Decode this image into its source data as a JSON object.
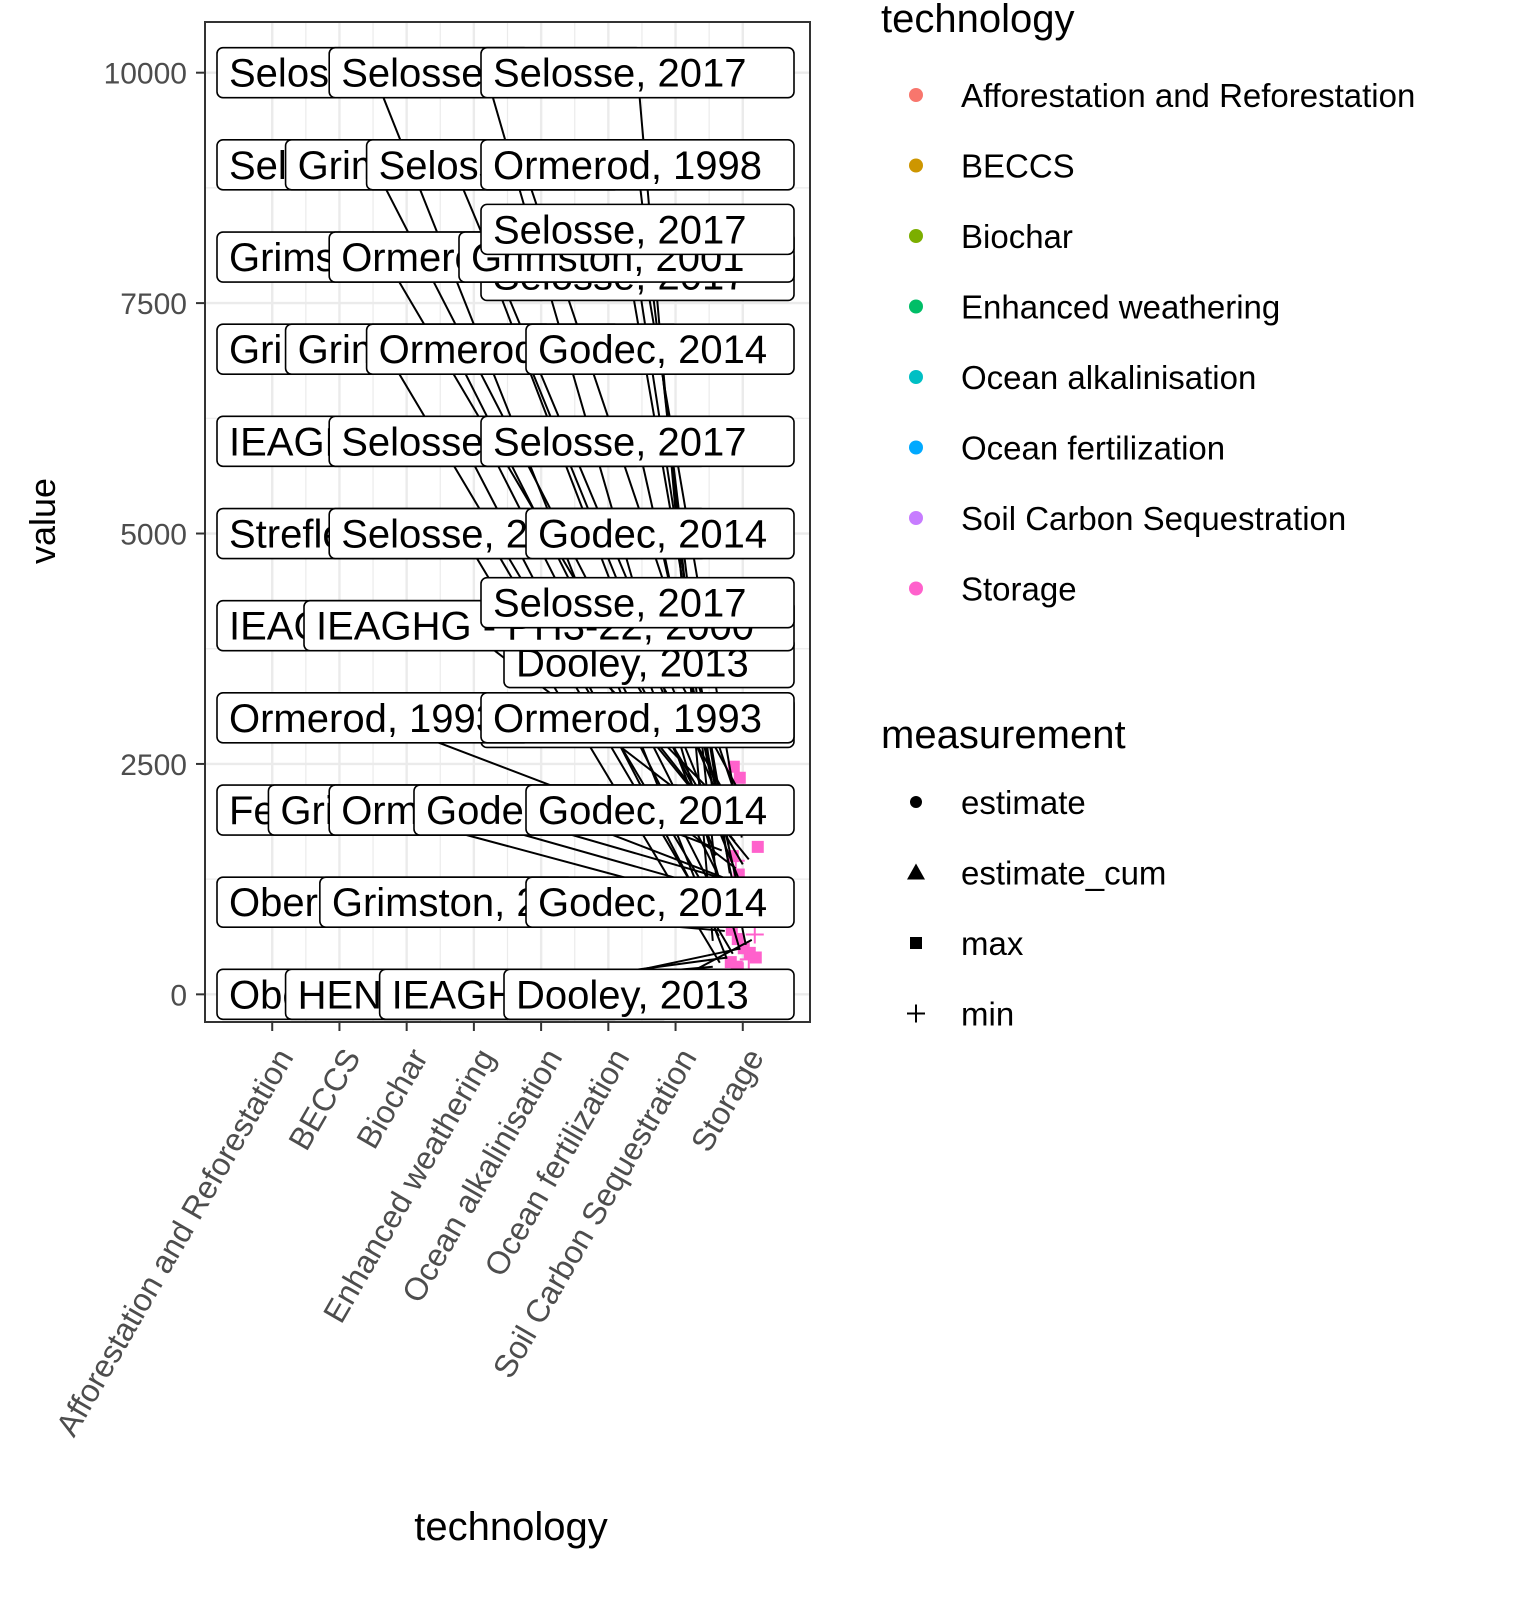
{
  "chart_data": {
    "type": "scatter",
    "xlabel": "technology",
    "ylabel": "value",
    "categories": [
      "Afforestation and Reforestation",
      "BECCS",
      "Biochar",
      "Enhanced weathering",
      "Ocean alkalinisation",
      "Ocean fertilization",
      "Soil Carbon Sequestration",
      "Storage"
    ],
    "ylim": [
      -300,
      10550
    ],
    "yticks": [
      0,
      2500,
      5000,
      7500,
      10000
    ],
    "ytick_labels": [
      "0",
      "2500",
      "5000",
      "7500",
      "10000"
    ],
    "grid": true,
    "legend_position": "right",
    "legend_technology": {
      "title": "technology",
      "items": [
        {
          "label": "Afforestation and Reforestation",
          "color": "#F8766D"
        },
        {
          "label": "BECCS",
          "color": "#CD9600"
        },
        {
          "label": "Biochar",
          "color": "#7CAE00"
        },
        {
          "label": "Enhanced weathering",
          "color": "#00BE67"
        },
        {
          "label": "Ocean alkalinisation",
          "color": "#00BFC4"
        },
        {
          "label": "Ocean fertilization",
          "color": "#00A9FF"
        },
        {
          "label": "Soil Carbon Sequestration",
          "color": "#C77CFF"
        },
        {
          "label": "Storage",
          "color": "#FF61CC"
        }
      ]
    },
    "legend_measurement": {
      "title": "measurement",
      "items": [
        {
          "label": "estimate",
          "shape": "circle"
        },
        {
          "label": "estimate_cum",
          "shape": "triangle"
        },
        {
          "label": "max",
          "shape": "square"
        },
        {
          "label": "min",
          "shape": "plus"
        }
      ]
    },
    "points": [
      {
        "x": "Afforestation and Reforestation",
        "y": 20,
        "color": "#F8766D",
        "shape": "plus"
      },
      {
        "x": "Storage",
        "y": 2470,
        "color": "#FF61CC",
        "shape": "square"
      },
      {
        "x": "Storage",
        "y": 2350,
        "color": "#FF61CC",
        "shape": "square"
      },
      {
        "x": "Storage",
        "y": 2000,
        "color": "#FF61CC",
        "shape": "square"
      },
      {
        "x": "Storage",
        "y": 1850,
        "color": "#FF61CC",
        "shape": "square"
      },
      {
        "x": "Storage",
        "y": 1600,
        "color": "#FF61CC",
        "shape": "square"
      },
      {
        "x": "Storage",
        "y": 1500,
        "color": "#FF61CC",
        "shape": "square"
      },
      {
        "x": "Storage",
        "y": 1300,
        "color": "#FF61CC",
        "shape": "square"
      },
      {
        "x": "Storage",
        "y": 1100,
        "color": "#FF61CC",
        "shape": "square"
      },
      {
        "x": "Storage",
        "y": 900,
        "color": "#FF61CC",
        "shape": "square"
      },
      {
        "x": "Storage",
        "y": 800,
        "color": "#FF61CC",
        "shape": "square"
      },
      {
        "x": "Storage",
        "y": 700,
        "color": "#FF61CC",
        "shape": "square"
      },
      {
        "x": "Storage",
        "y": 600,
        "color": "#FF61CC",
        "shape": "square"
      },
      {
        "x": "Storage",
        "y": 500,
        "color": "#FF61CC",
        "shape": "square"
      },
      {
        "x": "Storage",
        "y": 450,
        "color": "#FF61CC",
        "shape": "square"
      },
      {
        "x": "Storage",
        "y": 400,
        "color": "#FF61CC",
        "shape": "square"
      },
      {
        "x": "Storage",
        "y": 350,
        "color": "#FF61CC",
        "shape": "square"
      },
      {
        "x": "Storage",
        "y": 300,
        "color": "#FF61CC",
        "shape": "square"
      },
      {
        "x": "Storage",
        "y": 250,
        "color": "#FF61CC",
        "shape": "plus"
      },
      {
        "x": "Storage",
        "y": 380,
        "color": "#FF61CC",
        "shape": "plus"
      },
      {
        "x": "Storage",
        "y": 650,
        "color": "#FF61CC",
        "shape": "plus"
      },
      {
        "x": "Storage",
        "y": 900,
        "color": "#FF61CC",
        "shape": "plus"
      },
      {
        "x": "Storage",
        "y": 1450,
        "color": "#FF61CC",
        "shape": "plus"
      }
    ],
    "labels": [
      {
        "text": "Selosse, 2017",
        "x": "Storage",
        "y": 10000
      },
      {
        "text": "Selosse, 2017",
        "x": "Storage",
        "y": 10000
      },
      {
        "text": "Selosse, 2017",
        "x": "Storage",
        "y": 10000
      },
      {
        "text": "Selosse, 2017",
        "x": "Storage",
        "y": 9000
      },
      {
        "text": "Grimston, 2001",
        "x": "Storage",
        "y": 9000
      },
      {
        "text": "Selosse, 2017",
        "x": "Storage",
        "y": 9000
      },
      {
        "text": "Ormerod, 1998",
        "x": "Storage",
        "y": 9000
      },
      {
        "text": "Selosse, 2017",
        "x": "Storage",
        "y": 8300
      },
      {
        "text": "Selosse, 2017",
        "x": "Storage",
        "y": 7800
      },
      {
        "text": "Grimston, 2001",
        "x": "Storage",
        "y": 8000
      },
      {
        "text": "Ormerod, 1993",
        "x": "Storage",
        "y": 8000
      },
      {
        "text": "Grimston, 2001",
        "x": "Storage",
        "y": 8000
      },
      {
        "text": "Grimston, 2001",
        "x": "Storage",
        "y": 7000
      },
      {
        "text": "Grimston, 2001",
        "x": "Storage",
        "y": 7000
      },
      {
        "text": "Ormerod, 1993",
        "x": "Storage",
        "y": 7000
      },
      {
        "text": "Godec, 2014",
        "x": "Storage",
        "y": 7000
      },
      {
        "text": "IEAGHG - PH3-22, 2000",
        "x": "Storage",
        "y": 6000
      },
      {
        "text": "Selosse, 2017",
        "x": "Storage",
        "y": 6000
      },
      {
        "text": "Selosse, 2017",
        "x": "Storage",
        "y": 6000
      },
      {
        "text": "Strefler et al., 2018",
        "x": "Storage",
        "y": 5000
      },
      {
        "text": "Selosse, 2017",
        "x": "Storage",
        "y": 5000
      },
      {
        "text": "Godec, 2014",
        "x": "Storage",
        "y": 5000
      },
      {
        "text": "IEAGHG - PH3-22, 2000",
        "x": "Storage",
        "y": 4000
      },
      {
        "text": "IEAGHG - PH3-22, 2000",
        "x": "Storage",
        "y": 4000
      },
      {
        "text": "Selosse, 2017",
        "x": "Storage",
        "y": 4250
      },
      {
        "text": "Dooley, 2013",
        "x": "Storage",
        "y": 3600
      },
      {
        "text": "Ormerod, 1993",
        "x": "Storage",
        "y": 3000
      },
      {
        "text": "Ormerod, 1993",
        "x": "Storage",
        "y": 3000
      },
      {
        "text": "Selosse, 2017",
        "x": "Storage",
        "y": 2950
      },
      {
        "text": "Ferrell, 2017",
        "x": "Storage",
        "y": 2000
      },
      {
        "text": "Grimston, 2001",
        "x": "Storage",
        "y": 2000
      },
      {
        "text": "Ormerod, 1993",
        "x": "Storage",
        "y": 2000
      },
      {
        "text": "Godec, 2013",
        "x": "Storage",
        "y": 2000
      },
      {
        "text": "Godec, 2014",
        "x": "Storage",
        "y": 2000
      },
      {
        "text": "Oberstein, 2017",
        "x": "Storage",
        "y": 1000
      },
      {
        "text": "Grimston, 2001",
        "x": "Storage",
        "y": 1000
      },
      {
        "text": "Godec, 2014",
        "x": "Storage",
        "y": 1000
      },
      {
        "text": "Oberstein, 2017",
        "x": "Storage",
        "y": 0
      },
      {
        "text": "HENDRIKS, 2004",
        "x": "Storage",
        "y": 0
      },
      {
        "text": "IEAGHG, 2009",
        "x": "Storage",
        "y": 0
      },
      {
        "text": "Dooley, 2013",
        "x": "Storage",
        "y": 0
      }
    ]
  }
}
